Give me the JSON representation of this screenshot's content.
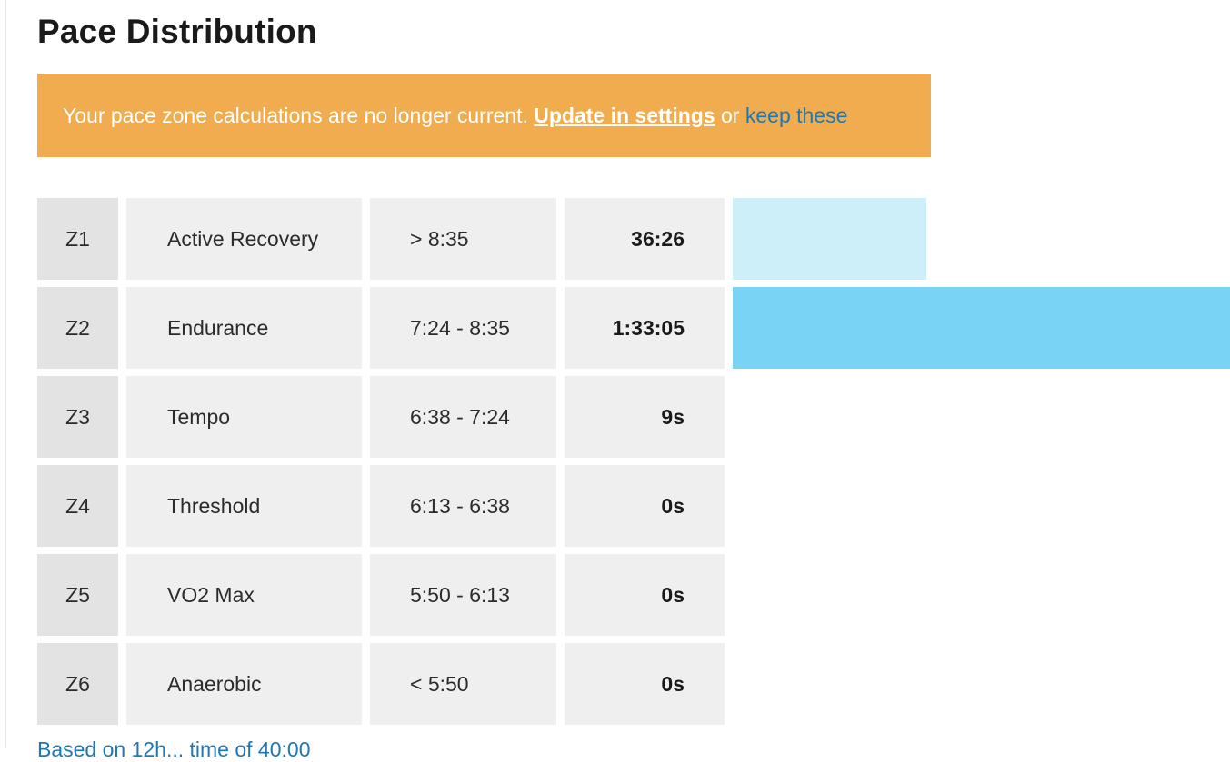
{
  "header": {
    "title": "Pace Distribution"
  },
  "banner": {
    "message": "Your pace zone calculations are no longer current.",
    "update_link": "Update in settings",
    "connector": "or",
    "keep_link": "keep these"
  },
  "colors": {
    "banner_bg": "#f0ac4e",
    "link_blue": "#1f77b4",
    "bar_light": "#cdeffa",
    "bar_medium": "#79d3f4"
  },
  "zones": [
    {
      "zone": "Z1",
      "name": "Active Recovery",
      "range": "> 8:35",
      "time": "36:26",
      "share": 0.28,
      "bar_color": "#cdeffa"
    },
    {
      "zone": "Z2",
      "name": "Endurance",
      "range": "7:24 - 8:35",
      "time": "1:33:05",
      "share": 0.72,
      "bar_color": "#79d3f4"
    },
    {
      "zone": "Z3",
      "name": "Tempo",
      "range": "6:38 - 7:24",
      "time": "9s",
      "share": 0.0,
      "bar_color": "#79d3f4"
    },
    {
      "zone": "Z4",
      "name": "Threshold",
      "range": "6:13 - 6:38",
      "time": "0s",
      "share": 0.0,
      "bar_color": "#79d3f4"
    },
    {
      "zone": "Z5",
      "name": "VO2 Max",
      "range": "5:50 - 6:13",
      "time": "0s",
      "share": 0.0,
      "bar_color": "#79d3f4"
    },
    {
      "zone": "Z6",
      "name": "Anaerobic",
      "range": "< 5:50",
      "time": "0s",
      "share": 0.0,
      "bar_color": "#79d3f4"
    }
  ],
  "footer": {
    "text": "Based on 12h... time of 40:00"
  }
}
